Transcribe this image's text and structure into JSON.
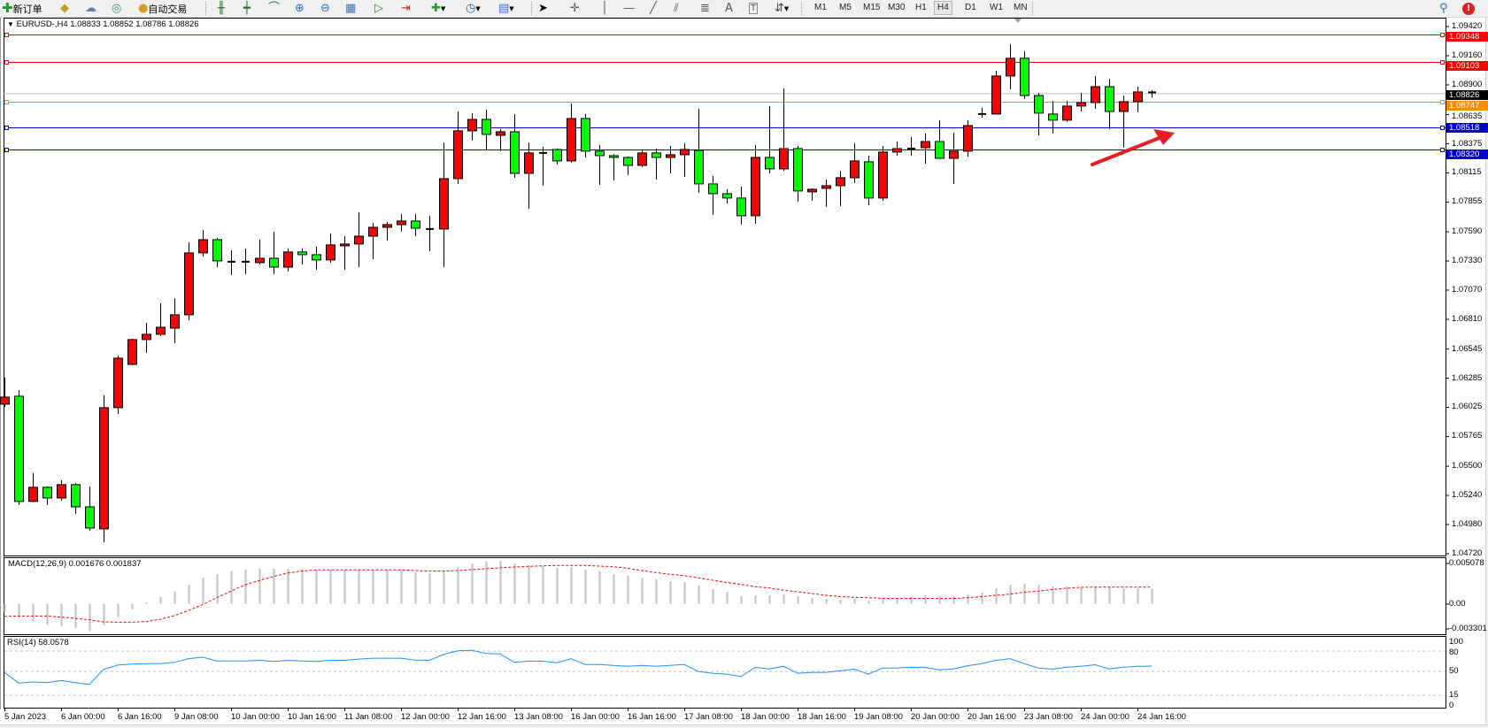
{
  "toolbar": {
    "new_order": {
      "label": "新订单",
      "icon": "plus-icon"
    },
    "auto_trading": {
      "label": "自动交易",
      "icon": "auto-trading-icon"
    },
    "timeframes": [
      "M1",
      "M5",
      "M15",
      "M30",
      "H1",
      "H4",
      "D1",
      "W1",
      "MN"
    ],
    "active_timeframe": "H4"
  },
  "chart": {
    "header": "EURUSD-,H4  1.08833 1.08852 1.08786 1.08826",
    "up_color": "#ff0000",
    "down_color": "#00ff00",
    "price_ticks": [
      "1.09420",
      "1.09160",
      "1.08900",
      "1.08635",
      "1.08375",
      "1.08115",
      "1.07855",
      "1.07590",
      "1.07330",
      "1.07070",
      "1.06810",
      "1.06545",
      "1.06285",
      "1.06025",
      "1.05765",
      "1.05500",
      "1.05240",
      "1.04980",
      "1.04720"
    ],
    "hlines": [
      {
        "price": "1.09348",
        "color": "#ff0000"
      },
      {
        "price": "1.09103",
        "color": "#ff0000"
      },
      {
        "price": "1.08747",
        "color": "#ff8c00"
      },
      {
        "price": "1.08518",
        "color": "#0000cd"
      },
      {
        "price": "1.08320",
        "color": "#0000cd"
      }
    ],
    "bid": {
      "price": "1.08826",
      "line_color": "#c0c0c0",
      "label_color": "#000000"
    },
    "annotation_arrow_color": "#e81c24",
    "time_labels": [
      "5 Jan 2023",
      "6 Jan 00:00",
      "6 Jan 16:00",
      "9 Jan 08:00",
      "10 Jan 00:00",
      "10 Jan 16:00",
      "11 Jan 08:00",
      "12 Jan 00:00",
      "12 Jan 16:00",
      "13 Jan 08:00",
      "16 Jan 00:00",
      "16 Jan 16:00",
      "17 Jan 08:00",
      "18 Jan 00:00",
      "18 Jan 16:00",
      "19 Jan 08:00",
      "20 Jan 00:00",
      "20 Jan 16:00",
      "23 Jan 08:00",
      "24 Jan 00:00",
      "24 Jan 16:00"
    ]
  },
  "chart_data": {
    "type": "candlestick",
    "ohlc_order": [
      "open",
      "high",
      "low",
      "close"
    ],
    "ylim": [
      1.0472,
      1.0942
    ],
    "candles": [
      [
        1.06053,
        1.0629,
        1.06029,
        1.06116
      ],
      [
        1.06124,
        1.06179,
        1.05154,
        1.05186
      ],
      [
        1.05186,
        1.05438,
        1.05178,
        1.05312
      ],
      [
        1.05312,
        1.0532,
        1.05154,
        1.05217
      ],
      [
        1.05217,
        1.05375,
        1.05194,
        1.05336
      ],
      [
        1.05336,
        1.05351,
        1.05075,
        1.05138
      ],
      [
        1.05138,
        1.0532,
        1.04925,
        1.04949
      ],
      [
        1.04941,
        1.06132,
        1.04823,
        1.06022
      ],
      [
        1.06022,
        1.06487,
        1.05966,
        1.06463
      ],
      [
        1.06408,
        1.06637,
        1.064,
        1.06629
      ],
      [
        1.06629,
        1.06779,
        1.06511,
        1.06676
      ],
      [
        1.06676,
        1.06952,
        1.0666,
        1.06739
      ],
      [
        1.06731,
        1.06999,
        1.06597,
        1.0685
      ],
      [
        1.0685,
        1.07496,
        1.06802,
        1.07402
      ],
      [
        1.07402,
        1.07607,
        1.0737,
        1.0752
      ],
      [
        1.0752,
        1.07536,
        1.07275,
        1.07331
      ],
      [
        1.07323,
        1.07425,
        1.07205,
        1.07325
      ],
      [
        1.07323,
        1.07441,
        1.07212,
        1.0732
      ],
      [
        1.07315,
        1.0752,
        1.07299,
        1.07354
      ],
      [
        1.07354,
        1.07591,
        1.07212,
        1.07275
      ],
      [
        1.07275,
        1.07441,
        1.07236,
        1.0741
      ],
      [
        1.0741,
        1.07441,
        1.07299,
        1.07386
      ],
      [
        1.07386,
        1.07457,
        1.07252,
        1.07339
      ],
      [
        1.07339,
        1.07575,
        1.07315,
        1.07473
      ],
      [
        1.07465,
        1.07551,
        1.07252,
        1.07481
      ],
      [
        1.07481,
        1.07764,
        1.07275,
        1.07551
      ],
      [
        1.07551,
        1.0767,
        1.07346,
        1.0763
      ],
      [
        1.0763,
        1.07678,
        1.07512,
        1.07654
      ],
      [
        1.07654,
        1.07749,
        1.07591,
        1.07686
      ],
      [
        1.07686,
        1.07749,
        1.07551,
        1.07622
      ],
      [
        1.07615,
        1.07733,
        1.07417,
        1.07612
      ],
      [
        1.07615,
        1.08387,
        1.07275,
        1.08064
      ],
      [
        1.08064,
        1.08663,
        1.08017,
        1.0849
      ],
      [
        1.0849,
        1.08648,
        1.08403,
        1.08592
      ],
      [
        1.08592,
        1.08679,
        1.08316,
        1.08458
      ],
      [
        1.0845,
        1.08506,
        1.08309,
        1.08482
      ],
      [
        1.08482,
        1.0864,
        1.08072,
        1.08111
      ],
      [
        1.08111,
        1.08387,
        1.07796,
        1.08293
      ],
      [
        1.08293,
        1.08348,
        1.08001,
        1.0829
      ],
      [
        1.08324,
        1.08332,
        1.0819,
        1.08222
      ],
      [
        1.08222,
        1.08734,
        1.08206,
        1.086
      ],
      [
        1.086,
        1.0864,
        1.08253,
        1.08309
      ],
      [
        1.08309,
        1.08364,
        1.08009,
        1.08269
      ],
      [
        1.08269,
        1.08285,
        1.08048,
        1.08253
      ],
      [
        1.08253,
        1.08261,
        1.08096,
        1.08182
      ],
      [
        1.08182,
        1.08324,
        1.08167,
        1.08293
      ],
      [
        1.08293,
        1.08332,
        1.08056,
        1.08253
      ],
      [
        1.08253,
        1.08356,
        1.08111,
        1.08277
      ],
      [
        1.08277,
        1.0838,
        1.0808,
        1.08324
      ],
      [
        1.08316,
        1.08687,
        1.07938,
        1.08017
      ],
      [
        1.08017,
        1.08088,
        1.07741,
        1.0793
      ],
      [
        1.0793,
        1.07969,
        1.07843,
        1.07891
      ],
      [
        1.07891,
        1.07993,
        1.07654,
        1.07733
      ],
      [
        1.07733,
        1.08364,
        1.07662,
        1.08253
      ],
      [
        1.08253,
        1.08711,
        1.08111,
        1.08151
      ],
      [
        1.08151,
        1.08868,
        1.08135,
        1.08332
      ],
      [
        1.08332,
        1.08356,
        1.07859,
        1.07954
      ],
      [
        1.07946,
        1.07977,
        1.07867,
        1.07969
      ],
      [
        1.07977,
        1.08056,
        1.07812,
        1.08001
      ],
      [
        1.08001,
        1.08135,
        1.0782,
        1.08072
      ],
      [
        1.08072,
        1.0838,
        1.08025,
        1.08222
      ],
      [
        1.08214,
        1.08269,
        1.07827,
        1.07891
      ],
      [
        1.07891,
        1.08356,
        1.07867,
        1.08301
      ],
      [
        1.08301,
        1.08395,
        1.08269,
        1.08332
      ],
      [
        1.08332,
        1.08435,
        1.08269,
        1.08335
      ],
      [
        1.0834,
        1.08466,
        1.08198,
        1.08395
      ],
      [
        1.08395,
        1.08585,
        1.0824,
        1.08245
      ],
      [
        1.08245,
        1.08474,
        1.08017,
        1.08309
      ],
      [
        1.08309,
        1.08585,
        1.08261,
        1.08537
      ],
      [
        1.0864,
        1.08695,
        1.08608,
        1.08638
      ],
      [
        1.0864,
        1.09026,
        1.08635,
        1.08979
      ],
      [
        1.08979,
        1.09263,
        1.08861,
        1.09137
      ],
      [
        1.09137,
        1.092,
        1.08774,
        1.08805
      ],
      [
        1.08805,
        1.08829,
        1.0845,
        1.08648
      ],
      [
        1.0864,
        1.08758,
        1.08466,
        1.08585
      ],
      [
        1.08585,
        1.08758,
        1.08569,
        1.08711
      ],
      [
        1.08711,
        1.08829,
        1.08663,
        1.08742
      ],
      [
        1.08742,
        1.08979,
        1.08687,
        1.08884
      ],
      [
        1.08884,
        1.08955,
        1.08506,
        1.08663
      ],
      [
        1.08663,
        1.08805,
        1.0834,
        1.0875
      ],
      [
        1.0875,
        1.08884,
        1.08655,
        1.08837
      ],
      [
        1.08833,
        1.08852,
        1.08786,
        1.08826
      ]
    ],
    "macd": {
      "title": "MACD(12,26,9) 0.001676 0.001837",
      "ticks": [
        "0.005078",
        "0.00",
        "-0.003301"
      ],
      "ylim": [
        -0.003301,
        0.005078
      ],
      "histogram_color": "#c0c0c0",
      "signal_color": "#ff0000",
      "histogram": [
        -0.00088,
        -0.00159,
        -0.00195,
        -0.00228,
        -0.00244,
        -0.00267,
        -0.00302,
        -0.00234,
        -0.00143,
        -0.00059,
        0.00016,
        0.00075,
        0.00137,
        0.00211,
        0.00289,
        0.00328,
        0.00358,
        0.00377,
        0.00387,
        0.00387,
        0.00387,
        0.00387,
        0.00377,
        0.00377,
        0.00377,
        0.00377,
        0.00367,
        0.00374,
        0.00367,
        0.00348,
        0.00338,
        0.00358,
        0.00406,
        0.00445,
        0.00465,
        0.00475,
        0.00445,
        0.00426,
        0.00416,
        0.00397,
        0.00406,
        0.00377,
        0.00358,
        0.00328,
        0.00309,
        0.00289,
        0.0027,
        0.0025,
        0.00241,
        0.00202,
        0.00163,
        0.00133,
        0.00085,
        0.00094,
        0.00094,
        0.00104,
        0.00085,
        0.00065,
        0.00055,
        0.00046,
        0.00055,
        0.00036,
        0.00065,
        0.00065,
        0.00075,
        0.00094,
        0.00085,
        0.00085,
        0.00104,
        0.00124,
        0.00172,
        0.00211,
        0.00221,
        0.00211,
        0.00192,
        0.00192,
        0.00182,
        0.00182,
        0.00182,
        0.00172,
        0.00172,
        0.001676
      ],
      "signal": [
        -0.00137,
        -0.00133,
        -0.00133,
        -0.00133,
        -0.00146,
        -0.00159,
        -0.00176,
        -0.00198,
        -0.00202,
        -0.00202,
        -0.00195,
        -0.00169,
        -0.0013,
        -0.00072,
        -7e-05,
        0.00068,
        0.0014,
        0.00211,
        0.00257,
        0.00302,
        0.00341,
        0.00361,
        0.00374,
        0.00374,
        0.00374,
        0.00374,
        0.00374,
        0.00374,
        0.00374,
        0.00367,
        0.00361,
        0.00361,
        0.00367,
        0.00377,
        0.00387,
        0.00397,
        0.00406,
        0.00413,
        0.00419,
        0.00423,
        0.00423,
        0.00423,
        0.00416,
        0.0041,
        0.00393,
        0.00367,
        0.00345,
        0.00325,
        0.00312,
        0.00286,
        0.0026,
        0.00237,
        0.00215,
        0.00189,
        0.00176,
        0.0015,
        0.00133,
        0.00114,
        0.00094,
        0.00081,
        0.00072,
        0.00068,
        0.00062,
        0.00059,
        0.00059,
        0.00059,
        0.00059,
        0.00059,
        0.00068,
        0.00081,
        0.00094,
        0.00107,
        0.0013,
        0.0014,
        0.00159,
        0.00172,
        0.00182,
        0.00185,
        0.00185,
        0.00185,
        0.00185,
        0.001837
      ]
    },
    "rsi": {
      "title": "RSI(14) 58.0578",
      "ticks": [
        "100",
        "80",
        "50",
        "15",
        "0"
      ],
      "levels": [
        80,
        50,
        15
      ],
      "ylim": [
        0,
        100
      ],
      "color": "#1e90ff",
      "values": [
        48.7,
        33,
        34.5,
        33.7,
        36.6,
        33.7,
        31,
        53,
        59.5,
        60.9,
        61.7,
        61.7,
        63.5,
        69,
        71,
        65.6,
        65.6,
        65.6,
        66.5,
        64.8,
        66.5,
        65.6,
        64.8,
        66.5,
        66.5,
        68.3,
        69.6,
        69.6,
        69.6,
        66.8,
        66.5,
        75.2,
        80.4,
        81.3,
        76.5,
        76,
        63.5,
        65.2,
        65.2,
        63,
        69,
        60.4,
        60.4,
        59,
        57.7,
        59,
        57.7,
        59,
        60.4,
        50,
        47.5,
        46.2,
        42.5,
        56,
        53.9,
        57.7,
        47.5,
        48.7,
        48.7,
        51.3,
        53.5,
        46.2,
        55.2,
        55.2,
        56.5,
        56,
        52.6,
        53.9,
        58.6,
        61.7,
        66.5,
        69,
        61.7,
        55.2,
        53.5,
        56.5,
        57.7,
        60,
        53.9,
        56.5,
        57.7,
        58.0578
      ]
    }
  }
}
